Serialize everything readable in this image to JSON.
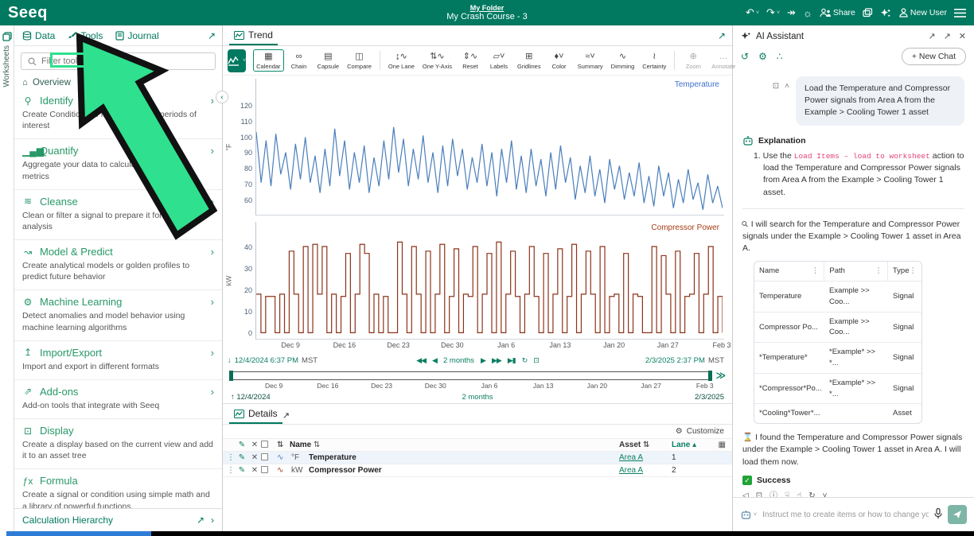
{
  "topbar": {
    "logo": "Seeq",
    "folder_link": "My Folder",
    "title": "My Crash Course - 3",
    "share_label": "Share",
    "user_label": "New User"
  },
  "worksheets_rail": {
    "label": "Worksheets"
  },
  "sidebar": {
    "tabs": [
      {
        "label": "Data"
      },
      {
        "label": "Tools"
      },
      {
        "label": "Journal"
      }
    ],
    "filter_placeholder": "Filter tools...",
    "overview_label": "Overview",
    "tools": [
      {
        "label": "Identify",
        "glyph": "⚲",
        "chevron": "›",
        "desc": "Create Conditions to find events and periods of interest"
      },
      {
        "label": "Quantify",
        "glyph": "▁▄▆",
        "chevron": "›",
        "desc": "Aggregate your data to calculate key process metrics"
      },
      {
        "label": "Cleanse",
        "glyph": "≋",
        "chevron": "›",
        "desc": "Clean or filter a signal to prepare it for further analysis"
      },
      {
        "label": "Model & Predict",
        "glyph": "↝",
        "chevron": "›",
        "desc": "Create analytical models or golden profiles to predict future behavior"
      },
      {
        "label": "Machine Learning",
        "glyph": "⚙",
        "chevron": "›",
        "desc": "Detect anomalies and model behavior using machine learning algorithms"
      },
      {
        "label": "Import/Export",
        "glyph": "↥",
        "chevron": "›",
        "desc": "Import and export in different formats"
      },
      {
        "label": "Add-ons",
        "glyph": "⇗",
        "chevron": "›",
        "desc": "Add-on tools that integrate with Seeq"
      },
      {
        "label": "Display",
        "glyph": "⊡",
        "chevron": "",
        "desc": "Create a display based on the current view and add it to an asset tree"
      },
      {
        "label": "Formula",
        "glyph": "ƒx",
        "chevron": "",
        "desc": "Create a signal or condition using simple math and a library of powerful functions"
      }
    ],
    "footer_link": "Calculation Hierarchy"
  },
  "trend": {
    "tab_label": "Trend",
    "toolbar": [
      {
        "label": "Calendar",
        "glyph": "▦",
        "state": "selected"
      },
      {
        "label": "Chain",
        "glyph": "∞"
      },
      {
        "label": "Capsule",
        "glyph": "▤"
      },
      {
        "label": "Compare",
        "glyph": "◫"
      },
      {
        "sep": true
      },
      {
        "label": "One Lane",
        "glyph": "↨∿"
      },
      {
        "label": "One Y-Axis",
        "glyph": "⇅∿"
      },
      {
        "label": "Reset",
        "glyph": "⇕∿"
      },
      {
        "label": "Labels",
        "glyph": "▱˅"
      },
      {
        "label": "Gridlines",
        "glyph": "⊞"
      },
      {
        "label": "Color",
        "glyph": "♦˅"
      },
      {
        "label": "Summary",
        "glyph": "≈˅"
      },
      {
        "label": "Dimming",
        "glyph": "∿"
      },
      {
        "label": "Certainty",
        "glyph": "≀"
      },
      {
        "sep": true
      },
      {
        "label": "Zoom",
        "glyph": "⊕",
        "state": "disabled"
      },
      {
        "label": "Annotate",
        "glyph": "…",
        "state": "disabled"
      }
    ]
  },
  "chart_data": [
    {
      "type": "line",
      "title": "Temperature",
      "ylabel": "°F",
      "xlabel": "",
      "yticks": [
        120,
        110,
        100,
        90,
        80,
        70,
        60
      ],
      "ylim": [
        52,
        125
      ],
      "x_ticks": [
        "Dec 9",
        "Dec 16",
        "Dec 23",
        "Dec 30",
        "Jan 6",
        "Jan 13",
        "Jan 20",
        "Jan 27",
        "Feb 3"
      ],
      "color": "#4a7ebc",
      "step": false,
      "values": [
        100,
        70,
        95,
        68,
        99,
        75,
        88,
        66,
        93,
        72,
        97,
        70,
        86,
        64,
        90,
        68,
        102,
        74,
        95,
        66,
        88,
        70,
        92,
        64,
        85,
        68,
        95,
        72,
        103,
        76,
        96,
        68,
        90,
        72,
        98,
        70,
        88,
        64,
        92,
        68,
        96,
        74,
        90,
        66,
        85,
        70,
        93,
        68,
        88,
        62,
        90,
        70,
        95,
        66,
        86,
        64,
        90,
        68,
        84,
        62,
        88,
        66,
        92,
        70,
        85,
        60,
        80,
        64,
        86,
        62,
        78,
        58,
        84,
        66,
        80,
        60,
        76,
        62,
        82,
        58,
        74,
        56,
        80,
        62,
        76,
        55,
        72,
        58,
        78,
        60,
        70,
        54,
        75,
        58,
        68,
        55
      ]
    },
    {
      "type": "line",
      "title": "Compressor Power",
      "ylabel": "kW",
      "xlabel": "",
      "yticks": [
        40,
        30,
        20,
        10,
        0
      ],
      "ylim": [
        -2,
        44
      ],
      "x_ticks": [
        "Dec 9",
        "Dec 16",
        "Dec 23",
        "Dec 30",
        "Jan 6",
        "Jan 13",
        "Jan 20",
        "Jan 27",
        "Feb 3"
      ],
      "color": "#8c3319",
      "step": true,
      "values": [
        17,
        0,
        16,
        16,
        0,
        17,
        0,
        36,
        17,
        0,
        38,
        0,
        39,
        17,
        38,
        0,
        17,
        0,
        16,
        35,
        0,
        17,
        39,
        35,
        0,
        17,
        0,
        16,
        0,
        0,
        40,
        17,
        0,
        38,
        17,
        0,
        36,
        0,
        17,
        39,
        0,
        16,
        37,
        0,
        17,
        16,
        38,
        0,
        17,
        35,
        0,
        40,
        0,
        17,
        36,
        16,
        0,
        17,
        38,
        16,
        0,
        35,
        0,
        17,
        37,
        0,
        16,
        39,
        0,
        17,
        36,
        17,
        0,
        38,
        0,
        16,
        17,
        0,
        35,
        0,
        17,
        16,
        0,
        0,
        38,
        0,
        34,
        17,
        0,
        36,
        0,
        16,
        17,
        35,
        0,
        17,
        38,
        0,
        16,
        0
      ]
    }
  ],
  "time_controls": {
    "start": "12/4/2024 6:37 PM",
    "start_tz": "MST",
    "end": "2/3/2025 2:37 PM",
    "end_tz": "MST",
    "duration": "2 months",
    "range_start": "12/4/2024",
    "range_duration": "2 months",
    "range_end": "2/3/2025",
    "slider_ticks": [
      "Dec 9",
      "Dec 16",
      "Dec 23",
      "Dec 30",
      "Jan 6",
      "Jan 13",
      "Jan 20",
      "Jan 27",
      "Feb 3"
    ]
  },
  "details": {
    "tab_label": "Details",
    "customize_label": "Customize",
    "name_col": "Name",
    "asset_col": "Asset",
    "lane_col": "Lane",
    "rows": [
      {
        "unit": "°F",
        "name": "Temperature",
        "asset": "Area A",
        "lane": "1"
      },
      {
        "unit": "kW",
        "name": "Compressor Power",
        "asset": "Area A",
        "lane": "2"
      }
    ]
  },
  "assistant": {
    "title": "AI Assistant",
    "new_chat_label": "+ New Chat",
    "user_message": "Load the Temperature and Compressor Power signals from Area A from the Example > Cooling Tower 1 asset",
    "explanation_title": "Explanation",
    "step_pre": "1. Use the ",
    "step_code": "Load Items – load to worksheet",
    "step_post": " action to load the Temperature and Compressor Power signals from Area A from the Example > Cooling Tower 1 asset.",
    "search_note": "I will search for the Temperature and Compressor Power signals under the Example > Cooling Tower 1 asset in Area A.",
    "results_table": {
      "columns": [
        "Name",
        "Path",
        "Type"
      ],
      "rows": [
        [
          "Temperature",
          "Example >> Coo...",
          "Signal"
        ],
        [
          "Compressor Po...",
          "Example >> Coo...",
          "Signal"
        ],
        [
          "*Temperature*",
          "*Example* >> *...",
          "Signal"
        ],
        [
          "*Compressor*Po...",
          "*Example* >> *...",
          "Signal"
        ],
        [
          "*Cooling*Tower*...",
          "",
          "Asset"
        ]
      ]
    },
    "found_note": "I found the Temperature and Compressor Power signals under the Example > Cooling Tower 1 asset in Area A. I will load them now.",
    "success_label": "Success",
    "input_placeholder": "Instruct me to create items or how to change your display"
  },
  "icons": {
    "undo": "↶",
    "redo": "↷",
    "replay": "↠",
    "ideas": "☼",
    "caret_down": "˅",
    "expand": "↗",
    "close": "✕",
    "collapse_left": "‹",
    "back_fast": "◀◀",
    "back": "◀",
    "fwd": "▶",
    "fwd_fast": "▶▶",
    "fwd_end": "▶▮",
    "refresh": "↻",
    "duplicate": "⊡",
    "range_expand": "≫",
    "down_arrow": "↓",
    "up_arrow": "↑",
    "sort": "⇅",
    "sort_asc": "▴",
    "grid": "▦",
    "kebab": "⋮",
    "wand": "✎",
    "remove": "✕",
    "squiggle": "∿",
    "gear": "⚙",
    "history": "↺",
    "share_nodes": "∴",
    "copy": "⊡",
    "collapse_up": "˄",
    "search": "⚲",
    "hourglass": "⌛",
    "speaker": "◁",
    "info": "ⓘ",
    "thumb_up": "☝",
    "thumb_down": "☟",
    "chevron_down": "˅",
    "home": "⌂",
    "chevron_right": "›"
  },
  "colors": {
    "brand_green": "#007960",
    "tool_green": "#279868",
    "highlight_green": "#2fe08e",
    "temperature_series": "#4a7ebc",
    "power_series": "#8c3319",
    "code_pink": "#e0447c",
    "success_green": "#21a336"
  }
}
